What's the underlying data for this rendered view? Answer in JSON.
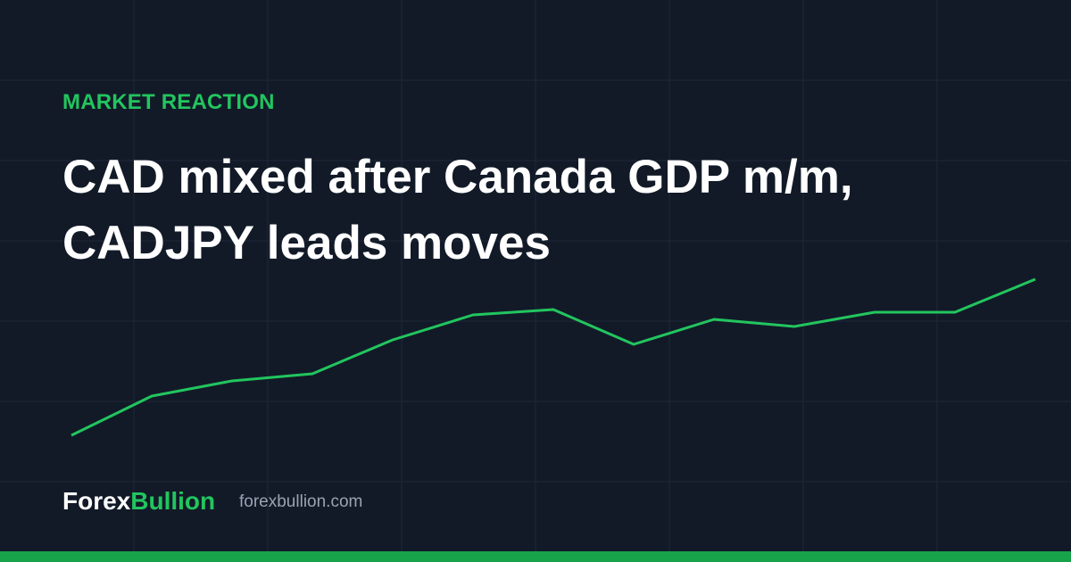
{
  "header": {
    "kicker": "MARKET REACTION",
    "title_lines": [
      "CAD mixed after Canada GDP m/m,",
      "CADJPY leads moves"
    ]
  },
  "footer": {
    "brand_parts": [
      "Forex",
      "Bullion"
    ],
    "url": "forexbullion.com"
  }
}
